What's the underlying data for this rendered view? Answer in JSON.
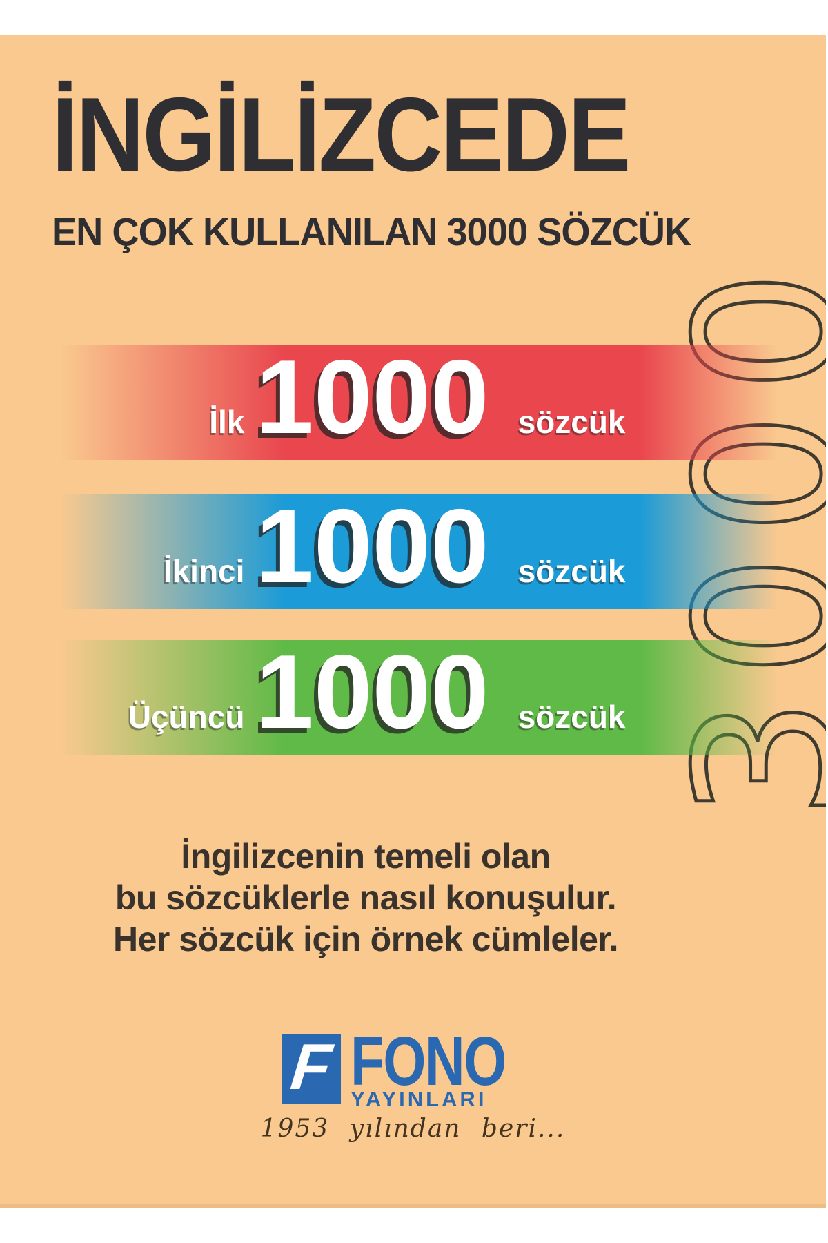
{
  "cover": {
    "title": "İNGİLİZCEDE",
    "subtitle": "EN ÇOK KULLANILAN 3000 SÖZCÜK",
    "bands": [
      {
        "label": "İlk",
        "number": "1000",
        "suffix": "sözcük",
        "color": "#E9464E"
      },
      {
        "label": "İkinci",
        "number": "1000",
        "suffix": "sözcük",
        "color": "#1B9BD7"
      },
      {
        "label": "Üçüncü",
        "number": "1000",
        "suffix": "sözcük",
        "color": "#5FBA47"
      }
    ],
    "watermark": "3000",
    "description": [
      "İngilizcenin temeli olan",
      "bu sözcüklerle nasıl konuşulur.",
      "Her sözcük için örnek cümleler."
    ],
    "publisher": {
      "monogram": "F",
      "name": "FONO",
      "subname": "YAYINLARI",
      "tagline": "1953 yılından beri...",
      "brand_color": "#2B68B2"
    },
    "colors": {
      "background": "#F9C98F",
      "page_margin": "#FFFFFF",
      "ink": "#2E2E33",
      "watermark_outline": "#403B30",
      "band_text": "#FFFFFF"
    }
  }
}
